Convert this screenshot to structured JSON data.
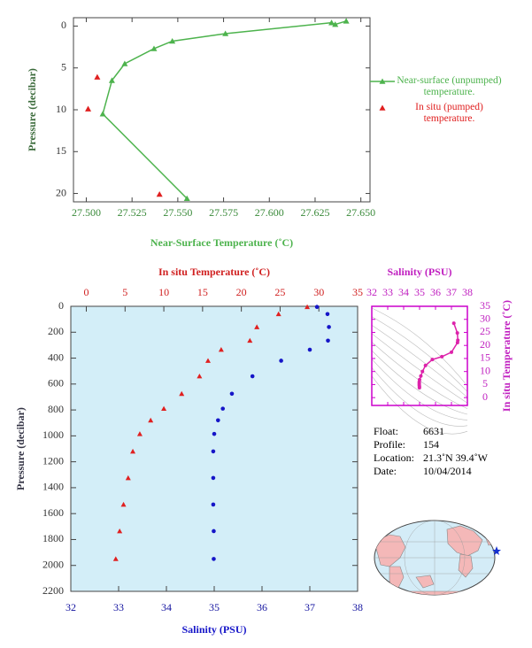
{
  "chart_data": [
    {
      "type": "line",
      "x_label": "Near-Surface Temperature (˚C)",
      "y_label": "Pressure (decibar)",
      "xlim": [
        27.493,
        27.655
      ],
      "ylim": [
        -1,
        21
      ],
      "y_inverted": true,
      "xticks": [
        {
          "value": 27.5,
          "label": "27.500"
        },
        27.525,
        {
          "value": 27.55,
          "label": "27.550"
        },
        27.575,
        {
          "value": 27.6,
          "label": "27.600"
        },
        27.625,
        {
          "value": 27.65,
          "label": "27.650"
        }
      ],
      "yticks": [
        0,
        5,
        10,
        15,
        20
      ],
      "legend": "right",
      "series": [
        {
          "name": "Near-surface (unpumped) temperature.",
          "color": "#4db34d",
          "line": true,
          "x": [
            27.642,
            27.636,
            27.634,
            27.576,
            27.547,
            27.537,
            27.521,
            27.514,
            27.509,
            27.555
          ],
          "values": [
            -0.6,
            -0.2,
            -0.4,
            0.9,
            1.8,
            2.7,
            4.5,
            6.5,
            10.5,
            20.6
          ]
        },
        {
          "name": "In situ (pumped) temperature.",
          "color": "#e02020",
          "line": false,
          "x": [
            27.506,
            27.501,
            27.54
          ],
          "values": [
            6.1,
            9.9,
            20.1
          ]
        }
      ]
    },
    {
      "type": "profile",
      "y_label": "Pressure (decibar)",
      "x_label": "Salinity (PSU)",
      "x2_label": "In situ Temperature (˚C)",
      "ylim": [
        0,
        2200
      ],
      "y_inverted": true,
      "yticks": [
        0,
        200,
        400,
        600,
        800,
        1000,
        1200,
        1400,
        1600,
        1800,
        2000,
        2200
      ],
      "xlim": [
        32,
        38
      ],
      "xticks": [
        32,
        33,
        34,
        35,
        36,
        37,
        38
      ],
      "x2lim": [
        -2,
        35
      ],
      "x2ticks": [
        0,
        5,
        10,
        15,
        20,
        25,
        30,
        35
      ],
      "pressure": [
        5,
        60,
        160,
        265,
        335,
        420,
        540,
        675,
        790,
        880,
        985,
        1120,
        1325,
        1530,
        1735,
        1950
      ],
      "series": [
        {
          "axis": "x2",
          "color": "#e02020",
          "marker": "triangle",
          "values": [
            28.5,
            24.8,
            22.0,
            21.1,
            17.4,
            15.7,
            14.6,
            12.3,
            10.0,
            8.3,
            6.9,
            6.0,
            5.4,
            4.8,
            4.3,
            3.8
          ]
        },
        {
          "axis": "x",
          "color": "#1515c8",
          "marker": "circle",
          "values": [
            37.15,
            37.37,
            37.4,
            37.38,
            37.0,
            36.4,
            35.8,
            35.37,
            35.18,
            35.08,
            35.0,
            34.98,
            34.98,
            34.98,
            34.99,
            34.99
          ]
        }
      ]
    },
    {
      "type": "ts",
      "x_label": "Salinity (PSU)",
      "y_label": "In situ Temperature (˚C)",
      "color": "#dd22aa",
      "xlim": [
        32,
        38
      ],
      "xticks": [
        32,
        33,
        34,
        35,
        36,
        37,
        38
      ],
      "ylim": [
        -3,
        35
      ],
      "yticks": [
        0,
        5,
        10,
        15,
        20,
        25,
        30,
        35
      ]
    }
  ],
  "info": [
    {
      "label": "Float:",
      "value": "6631"
    },
    {
      "label": "Profile:",
      "value": "154"
    },
    {
      "label": "Location:",
      "value": "21.3˚N  39.4˚W"
    },
    {
      "label": "Date:",
      "value": "10/04/2014"
    }
  ]
}
